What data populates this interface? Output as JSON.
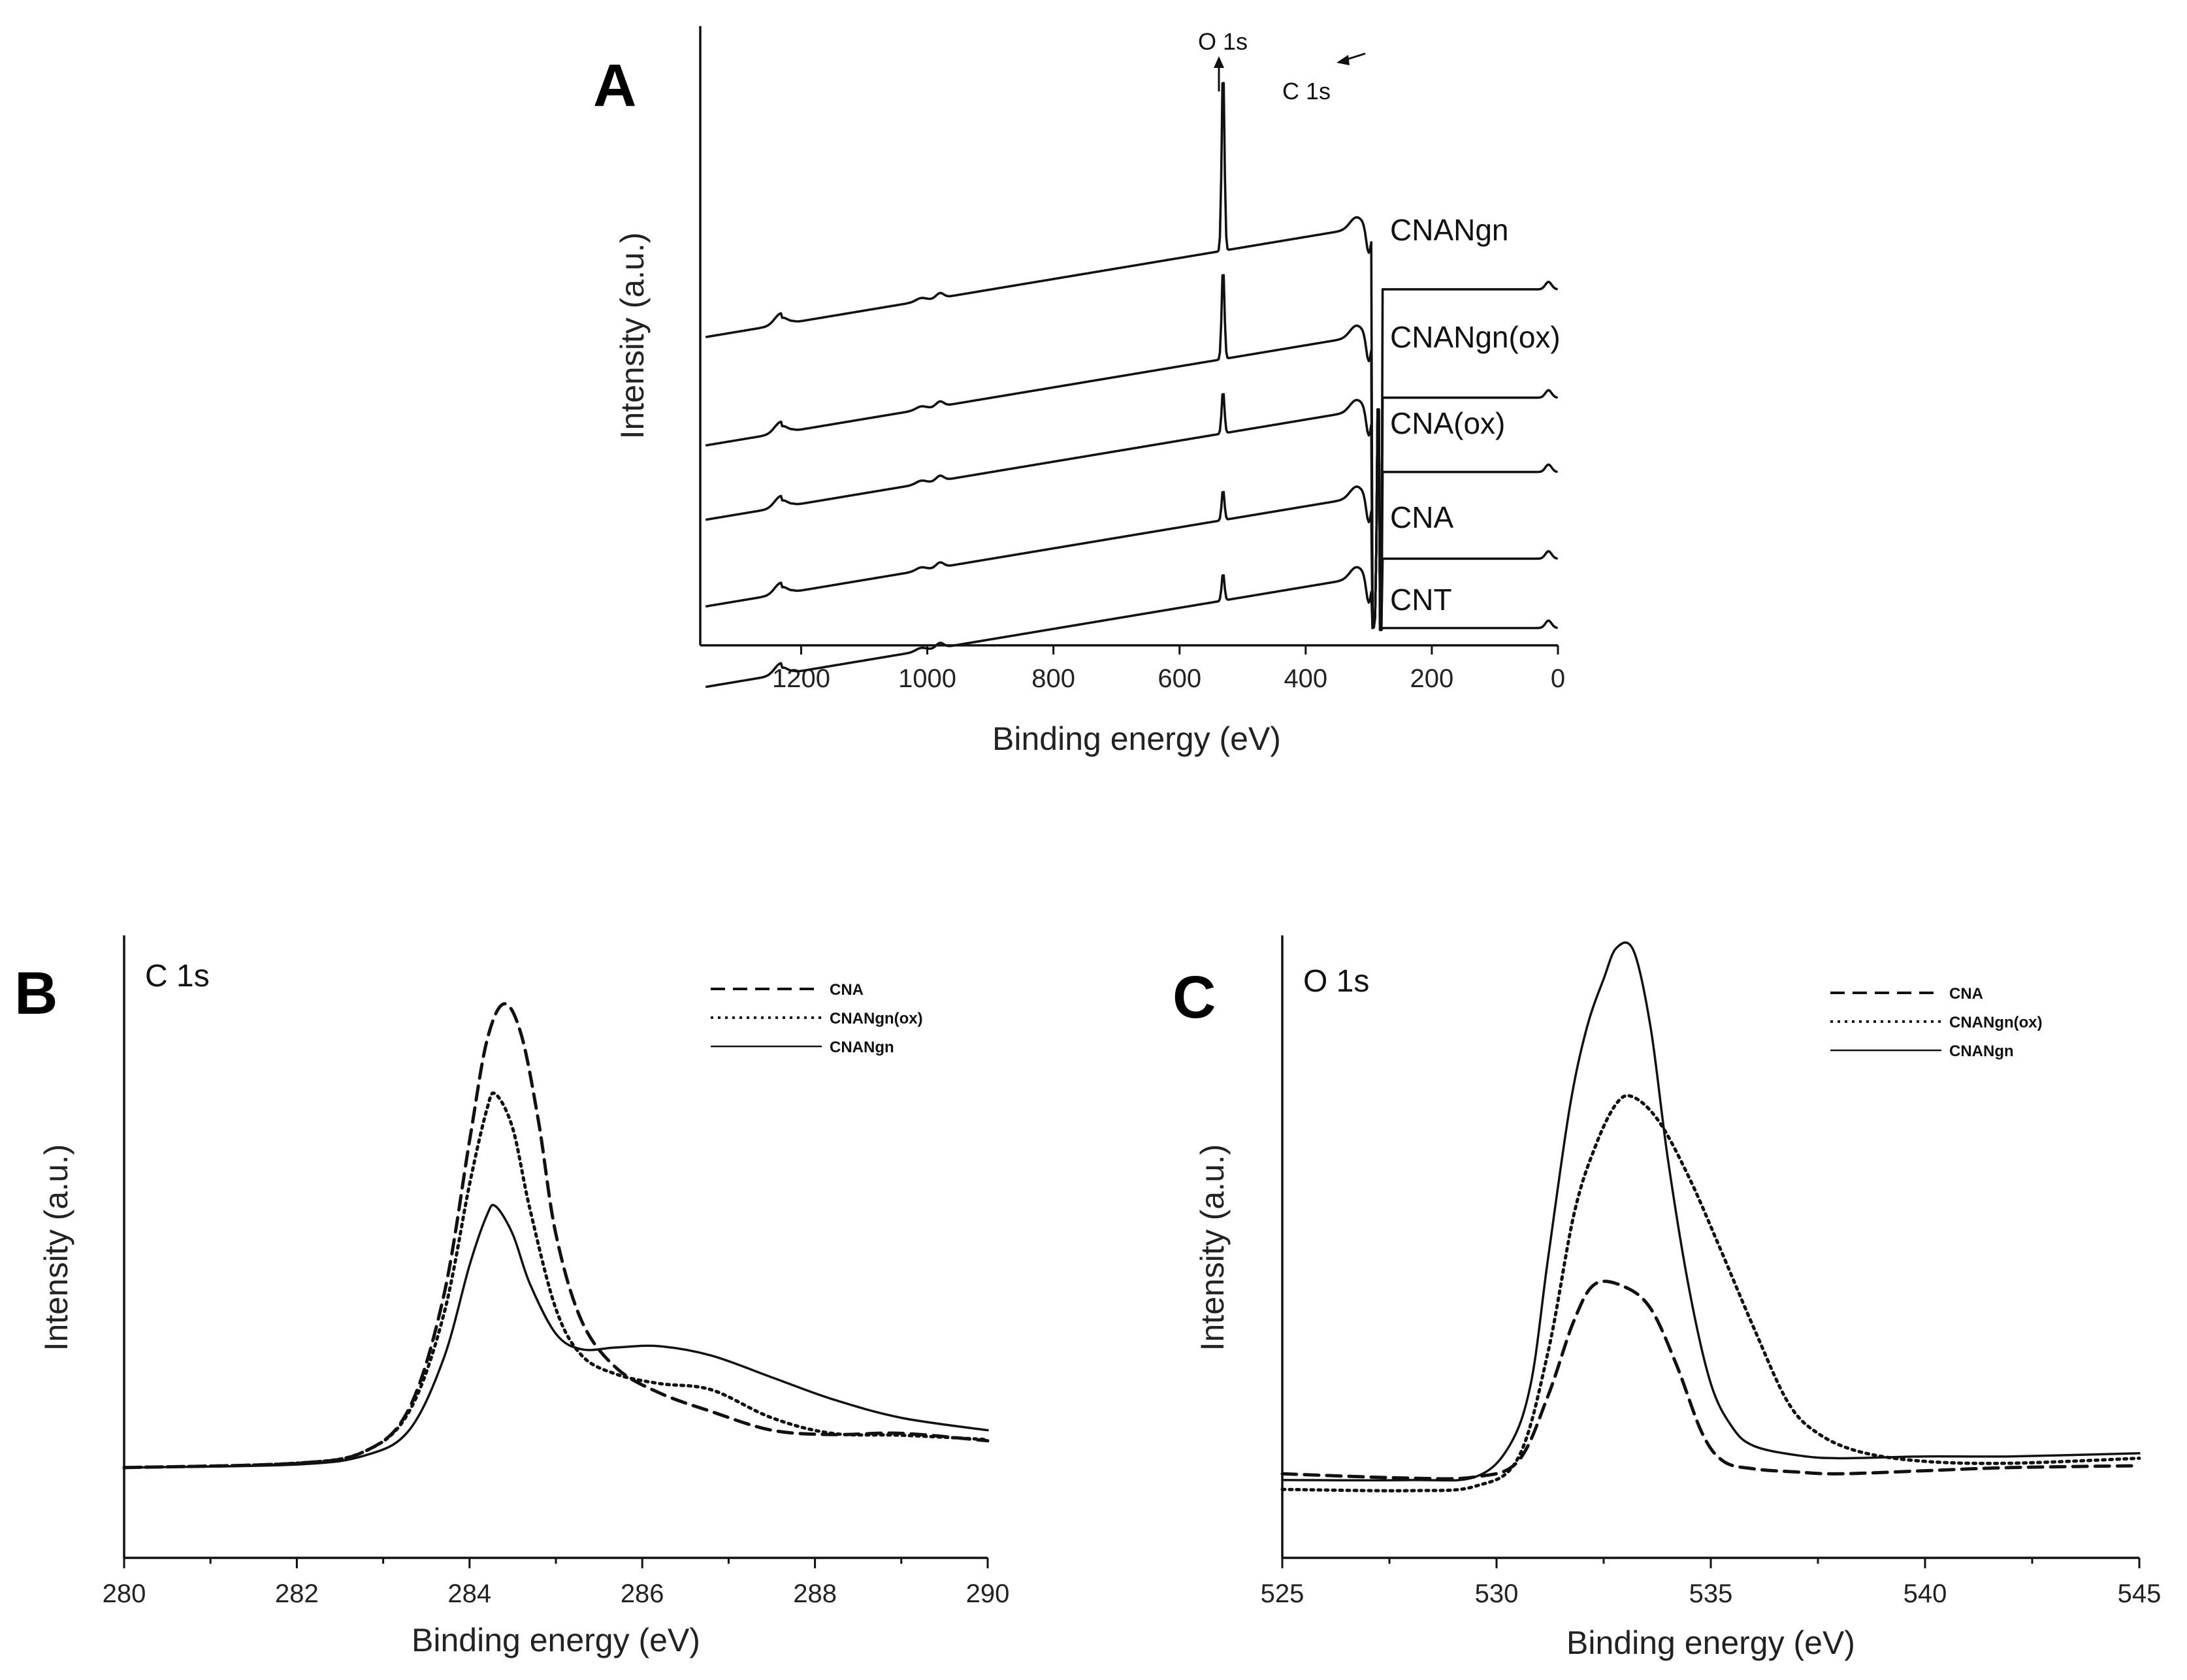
{
  "chart_data": [
    {
      "panel": "A",
      "type": "line",
      "xlabel": "Binding energy (eV)",
      "ylabel": "Intensity (a.u.)",
      "xlim": [
        1360,
        0
      ],
      "ylim": [
        0,
        10
      ],
      "xticks": [
        1200,
        1000,
        800,
        600,
        400,
        200,
        0
      ],
      "annotations": [
        {
          "text": "O 1s",
          "x": 531
        },
        {
          "text": "C 1s",
          "x": 284.5
        }
      ],
      "series": [
        {
          "name": "CNANgn",
          "offset": 6.8
        },
        {
          "name": "CNANgn(ox)",
          "offset": 5.05
        },
        {
          "name": "CNA(ox)",
          "offset": 3.85
        },
        {
          "name": "CNA",
          "offset": 2.45
        },
        {
          "name": "CNT",
          "offset": 1.15
        }
      ],
      "peaks_O1s_height": [
        3.0,
        1.5,
        0.7,
        0.5,
        0.45
      ]
    },
    {
      "panel": "B",
      "type": "line",
      "corner_label": "C 1s",
      "xlabel": "Binding energy (eV)",
      "ylabel": "Intensity (a.u.)",
      "xlim": [
        280,
        290
      ],
      "ylim": [
        0,
        1
      ],
      "xticks": [
        280,
        282,
        284,
        286,
        288,
        290
      ],
      "series": [
        {
          "name": "CNA",
          "dash": "dashed",
          "x": [
            280,
            282,
            282.8,
            283.3,
            283.7,
            284.0,
            284.2,
            284.4,
            284.6,
            284.8,
            285.0,
            285.3,
            285.7,
            286.2,
            286.8,
            287.5,
            288.2,
            289.0,
            290.0
          ],
          "y": [
            0.145,
            0.152,
            0.172,
            0.24,
            0.42,
            0.67,
            0.83,
            0.89,
            0.84,
            0.7,
            0.52,
            0.38,
            0.305,
            0.265,
            0.235,
            0.205,
            0.198,
            0.2,
            0.188
          ]
        },
        {
          "name": "CNANgn(ox)",
          "dash": "dotted",
          "x": [
            280,
            282,
            282.8,
            283.3,
            283.7,
            284.0,
            284.2,
            284.3,
            284.5,
            284.7,
            285.0,
            285.3,
            285.7,
            286.2,
            286.8,
            287.5,
            288.2,
            289.0,
            290.0
          ],
          "y": [
            0.145,
            0.152,
            0.172,
            0.235,
            0.39,
            0.6,
            0.72,
            0.745,
            0.69,
            0.56,
            0.4,
            0.325,
            0.295,
            0.28,
            0.27,
            0.225,
            0.2,
            0.197,
            0.19
          ]
        },
        {
          "name": "CNANgn",
          "dash": "solid",
          "x": [
            280,
            282,
            282.8,
            283.3,
            283.7,
            284.0,
            284.2,
            284.3,
            284.5,
            284.7,
            285.0,
            285.3,
            285.7,
            286.2,
            286.8,
            287.5,
            288.2,
            289.0,
            290.0
          ],
          "y": [
            0.145,
            0.15,
            0.165,
            0.205,
            0.32,
            0.47,
            0.55,
            0.565,
            0.52,
            0.44,
            0.36,
            0.335,
            0.338,
            0.34,
            0.325,
            0.29,
            0.255,
            0.225,
            0.205
          ]
        }
      ]
    },
    {
      "panel": "C",
      "type": "line",
      "corner_label": "O 1s",
      "xlabel": "Binding energy (eV)",
      "ylabel": "Intensity (a.u.)",
      "xlim": [
        525,
        545
      ],
      "ylim": [
        0,
        1
      ],
      "xticks": [
        525,
        530,
        535,
        540,
        545
      ],
      "series": [
        {
          "name": "CNA",
          "dash": "dashed",
          "x": [
            525,
            528,
            529.5,
            530.5,
            531.2,
            531.8,
            532.3,
            533.0,
            533.6,
            534.2,
            534.8,
            535.3,
            536.0,
            537.0,
            538.0,
            540.0,
            542.0,
            545.0
          ],
          "y": [
            0.135,
            0.128,
            0.13,
            0.155,
            0.26,
            0.38,
            0.44,
            0.435,
            0.4,
            0.31,
            0.2,
            0.155,
            0.143,
            0.138,
            0.135,
            0.14,
            0.145,
            0.148
          ]
        },
        {
          "name": "CNANgn(ox)",
          "dash": "dotted",
          "x": [
            525,
            528,
            529.5,
            530.5,
            531.2,
            531.8,
            532.3,
            532.8,
            533.2,
            533.8,
            534.5,
            535.2,
            536.0,
            536.8,
            537.5,
            538.5,
            540.0,
            542.0,
            545.0
          ],
          "y": [
            0.11,
            0.108,
            0.115,
            0.16,
            0.33,
            0.55,
            0.66,
            0.73,
            0.74,
            0.7,
            0.61,
            0.5,
            0.37,
            0.25,
            0.2,
            0.17,
            0.155,
            0.152,
            0.16
          ]
        },
        {
          "name": "CNANgn",
          "dash": "solid",
          "x": [
            525,
            528,
            529.5,
            530.3,
            530.8,
            531.2,
            531.7,
            532.1,
            532.5,
            532.8,
            533.2,
            533.6,
            534.0,
            534.5,
            535.0,
            535.5,
            536.0,
            537.0,
            538.0,
            540.0,
            542.0,
            545.0
          ],
          "y": [
            0.125,
            0.125,
            0.13,
            0.18,
            0.28,
            0.48,
            0.72,
            0.85,
            0.93,
            0.98,
            0.975,
            0.85,
            0.64,
            0.43,
            0.28,
            0.21,
            0.18,
            0.165,
            0.16,
            0.163,
            0.163,
            0.168
          ]
        }
      ]
    }
  ]
}
